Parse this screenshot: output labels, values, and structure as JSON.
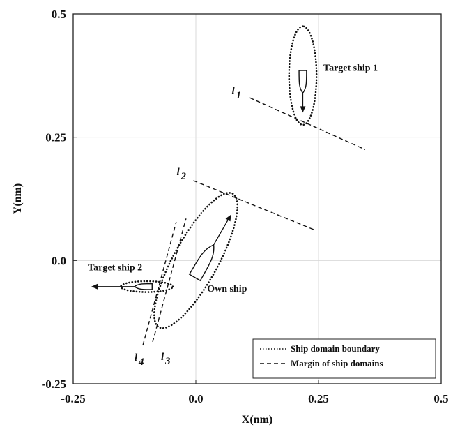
{
  "chart_data": {
    "type": "scatter",
    "title": "",
    "xlabel": "X(nm)",
    "ylabel": "Y(nm)",
    "xlim": [
      -0.25,
      0.5
    ],
    "ylim": [
      -0.25,
      0.5
    ],
    "grid": true,
    "x_ticks": [
      -0.25,
      0.0,
      0.25,
      0.5
    ],
    "x_tick_labels": [
      "-0.25",
      "0.0",
      "0.25",
      "0.5"
    ],
    "y_ticks": [
      -0.25,
      0.0,
      0.25,
      0.5
    ],
    "y_tick_labels": [
      "-0.25",
      "0.0",
      "0.25",
      "0.5"
    ],
    "legend": {
      "placement": "bottom-right",
      "entries": [
        {
          "label": "Ship domain boundary",
          "style": "dotted"
        },
        {
          "label": "Margin of ship domains",
          "style": "dashed"
        }
      ]
    },
    "ships": [
      {
        "name": "Target ship 1",
        "x": 0.218,
        "y": 0.365,
        "heading_deg": 180,
        "domain": {
          "cx": 0.218,
          "cy": 0.375,
          "a": 0.1,
          "b": 0.028,
          "angle_deg": 90
        }
      },
      {
        "name": "Target ship 2",
        "x": -0.105,
        "y": -0.053,
        "heading_deg": 270,
        "domain": {
          "cx": -0.1,
          "cy": -0.053,
          "a": 0.053,
          "b": 0.011,
          "angle_deg": 0
        }
      },
      {
        "name": "Own ship",
        "x": 0.015,
        "y": -0.005,
        "heading_deg": 30,
        "domain": {
          "cx": 0.0,
          "cy": 0.0,
          "a": 0.155,
          "b": 0.045,
          "angle_deg": 61
        }
      }
    ],
    "margin_lines": [
      {
        "name": "l1",
        "label_main": "l",
        "label_sub": "1",
        "points": [
          [
            0.11,
            0.33
          ],
          [
            0.345,
            0.225
          ]
        ]
      },
      {
        "name": "l2",
        "label_main": "l",
        "label_sub": "2",
        "points": [
          [
            -0.005,
            0.162
          ],
          [
            0.242,
            0.062
          ]
        ]
      },
      {
        "name": "l3",
        "label_main": "l",
        "label_sub": "3",
        "points": [
          [
            -0.088,
            -0.165
          ],
          [
            -0.02,
            0.085
          ]
        ]
      },
      {
        "name": "l4",
        "label_main": "l",
        "label_sub": "4",
        "points": [
          [
            -0.108,
            -0.172
          ],
          [
            -0.04,
            0.078
          ]
        ]
      }
    ],
    "annotations": [
      {
        "text": "Target ship 1",
        "x": 0.26,
        "y": 0.385
      },
      {
        "text": "Target ship 2",
        "x": -0.22,
        "y": -0.02
      },
      {
        "text": "Own ship",
        "x": 0.023,
        "y": -0.063
      }
    ],
    "colors": {
      "marks": "#111111",
      "grid": "#d9d9d9",
      "background": "#ffffff"
    }
  }
}
